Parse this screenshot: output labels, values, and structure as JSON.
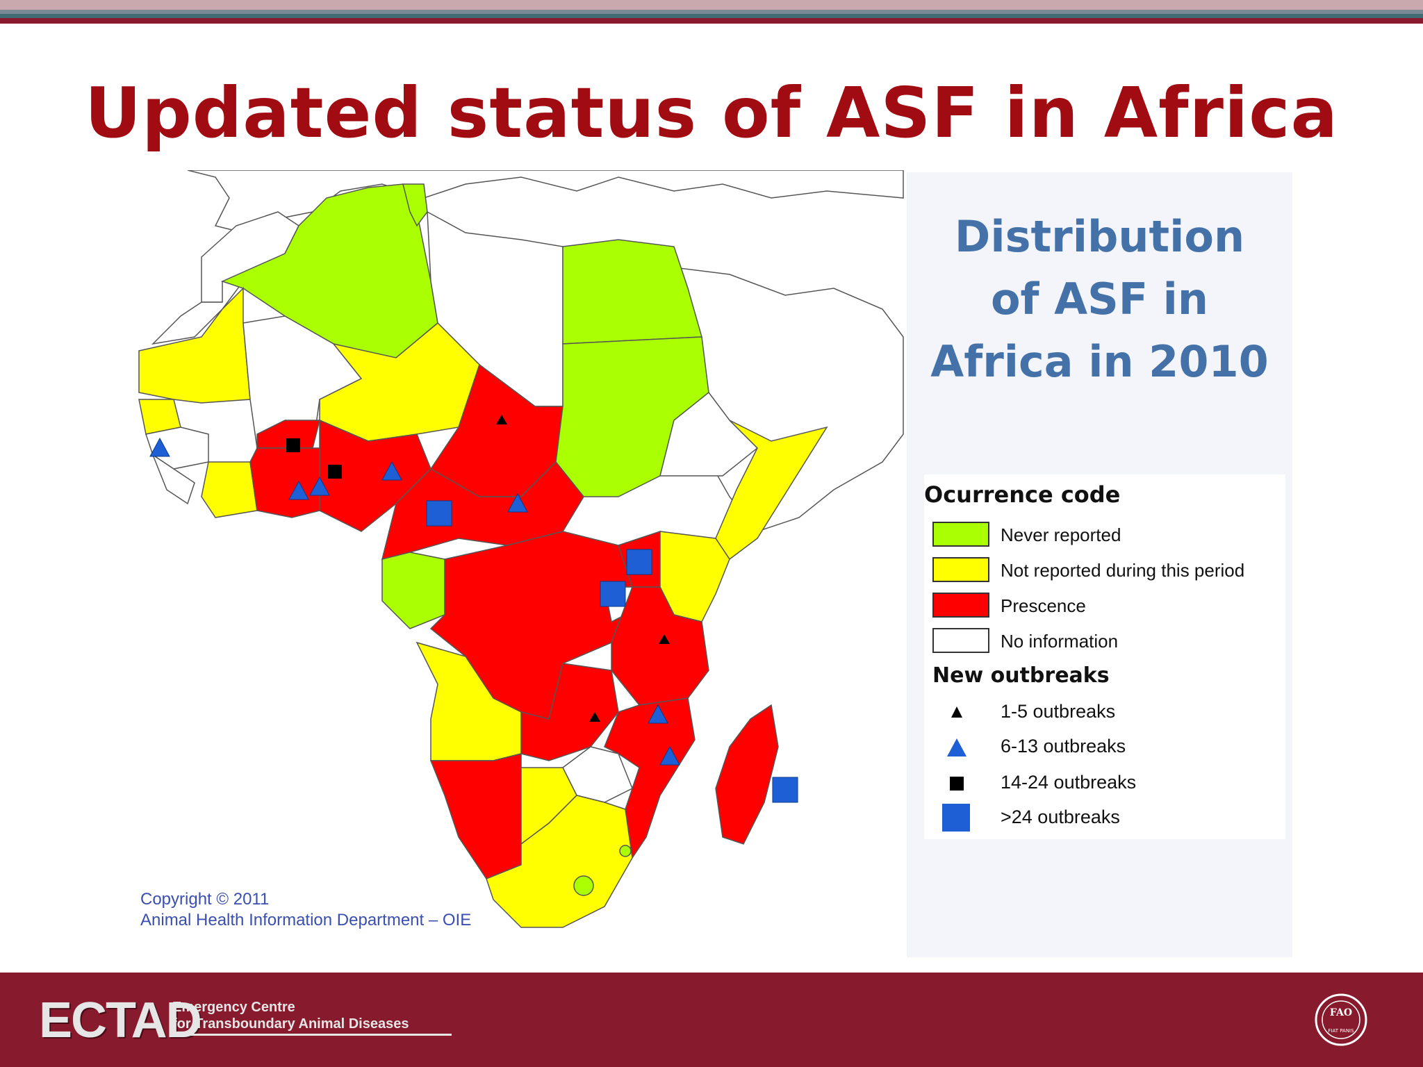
{
  "slide": {
    "title": "Updated status of ASF in Africa"
  },
  "panel": {
    "title_lines": [
      "Distribution",
      "of ASF in",
      "Africa in 2010"
    ]
  },
  "legend": {
    "occurrence_heading": "Ocurrence code",
    "occurrence": [
      {
        "label": "Never reported",
        "color": "#aaff00"
      },
      {
        "label": "Not reported during this period",
        "color": "#ffff00"
      },
      {
        "label": "Prescence",
        "color": "#ff0000"
      },
      {
        "label": "No information",
        "color": "#ffffff"
      }
    ],
    "outbreaks_heading": "New outbreaks",
    "outbreaks": [
      {
        "label": "1-5 outbreaks",
        "symbol": "small-black-triangle",
        "color": "#000000"
      },
      {
        "label": "6-13 outbreaks",
        "symbol": "blue-triangle",
        "color": "#1f5fd6"
      },
      {
        "label": "14-24 outbreaks",
        "symbol": "black-square",
        "color": "#000000"
      },
      {
        "label": ">24 outbreaks",
        "symbol": "blue-square",
        "color": "#1f5fd6"
      }
    ]
  },
  "map": {
    "copyright_line1": "Copyright © 2011",
    "copyright_line2": "Animal Health Information Department – OIE"
  },
  "footer": {
    "logo_big": "ECTAD",
    "logo_line1": "Emergency Centre",
    "logo_line2": "for Transboundary Animal Diseases",
    "partner_logo": "fao-logo",
    "partner_text": "FAO",
    "partner_motto": "FIAT PANIS"
  },
  "colors": {
    "title": "#a10c13",
    "panel_title": "#4472a8",
    "footer": "#871a2c"
  }
}
